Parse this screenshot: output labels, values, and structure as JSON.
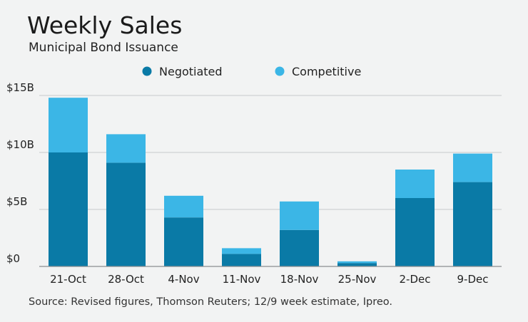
{
  "chart_data": {
    "type": "bar",
    "stacked": true,
    "title": "Weekly Sales",
    "subtitle": "Municipal Bond Issuance",
    "source": "Source: Revised figures, Thomson Reuters; 12/9 week estimate, Ipreo.",
    "categories": [
      "21-Oct",
      "28-Oct",
      "4-Nov",
      "11-Nov",
      "18-Nov",
      "25-Nov",
      "2-Dec",
      "9-Dec"
    ],
    "series": [
      {
        "name": "Negotiated",
        "color": "#0a7aa6",
        "values": [
          10.0,
          9.1,
          4.3,
          1.1,
          3.2,
          0.3,
          6.0,
          7.4
        ]
      },
      {
        "name": "Competitive",
        "color": "#3bb6e6",
        "values": [
          4.8,
          2.5,
          1.9,
          0.5,
          2.5,
          0.15,
          2.5,
          2.5
        ]
      }
    ],
    "ylim": [
      0,
      15
    ],
    "yticks": [
      {
        "value": 0,
        "label": "$0"
      },
      {
        "value": 5,
        "label": "$5B"
      },
      {
        "value": 10,
        "label": "$10B"
      },
      {
        "value": 15,
        "label": "$15B"
      }
    ],
    "grid": true,
    "legend_position": "top"
  }
}
